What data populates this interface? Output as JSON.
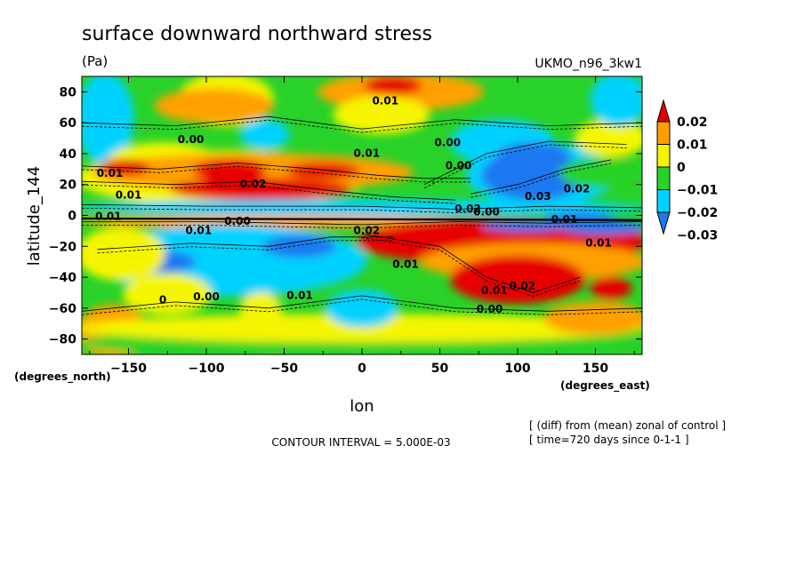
{
  "chart_data": {
    "type": "heatmap",
    "title": "surface downward northward stress",
    "units": "(Pa)",
    "run_label": "UKMO_n96_3kw1",
    "xlabel": "lon",
    "ylabel": "latitude_144",
    "x_unit_note": "(degrees_east)",
    "y_unit_note": "(degrees_north)",
    "xlim": [
      -180,
      180
    ],
    "ylim": [
      -90,
      90
    ],
    "x_ticks": [
      -150,
      -100,
      -50,
      0,
      50,
      100,
      150
    ],
    "x_tick_labels": [
      "−150",
      "−100",
      "−50",
      "0",
      "50",
      "100",
      "150"
    ],
    "y_ticks": [
      80,
      60,
      40,
      20,
      0,
      -20,
      -40,
      -60,
      -80
    ],
    "y_tick_labels": [
      "80",
      "60",
      "40",
      "20",
      "0",
      "−20",
      "−40",
      "−60",
      "−80"
    ],
    "colorbar": {
      "levels": [
        -0.03,
        -0.02,
        -0.01,
        0,
        0.01,
        0.02
      ],
      "labels": [
        "−0.03",
        "−0.02",
        "−0.01",
        "0",
        "0.01",
        "0.02"
      ],
      "colors": [
        "#1e78f0",
        "#00d2ff",
        "#28d228",
        "#f5f500",
        "#ffa000",
        "#e60000"
      ],
      "extend": "both"
    },
    "contour_interval": "CONTOUR INTERVAL = 5.000E-03",
    "contour_labels": [
      {
        "text": "0.01",
        "lon": 15,
        "lat": 72
      },
      {
        "text": "0.00",
        "lon": -110,
        "lat": 47
      },
      {
        "text": "0.00",
        "lon": 55,
        "lat": 45
      },
      {
        "text": "0.01",
        "lon": 3,
        "lat": 38
      },
      {
        "text": "0.00",
        "lon": 62,
        "lat": 30
      },
      {
        "text": "0.01",
        "lon": -162,
        "lat": 25
      },
      {
        "text": "0.02",
        "lon": -70,
        "lat": 18
      },
      {
        "text": "0.01",
        "lon": -150,
        "lat": 11
      },
      {
        "text": "0.02",
        "lon": 138,
        "lat": 15
      },
      {
        "text": "0.03",
        "lon": 113,
        "lat": 10
      },
      {
        "text": "0.02",
        "lon": 68,
        "lat": 2
      },
      {
        "text": "0.00",
        "lon": 80,
        "lat": 0
      },
      {
        "text": "0.01",
        "lon": -163,
        "lat": -3
      },
      {
        "text": "0.00",
        "lon": -80,
        "lat": -6
      },
      {
        "text": "0.01",
        "lon": -105,
        "lat": -12
      },
      {
        "text": "0.02",
        "lon": 3,
        "lat": -12
      },
      {
        "text": "0.01",
        "lon": 130,
        "lat": -5
      },
      {
        "text": "0.01",
        "lon": 152,
        "lat": -20
      },
      {
        "text": "0.01",
        "lon": 28,
        "lat": -34
      },
      {
        "text": "0.01",
        "lon": -40,
        "lat": -54
      },
      {
        "text": "0.02",
        "lon": 103,
        "lat": -48
      },
      {
        "text": "0.01",
        "lon": 85,
        "lat": -51
      },
      {
        "text": "0.00",
        "lon": -100,
        "lat": -55
      },
      {
        "text": "0.00",
        "lon": 82,
        "lat": -63
      },
      {
        "text": "0",
        "lon": -128,
        "lat": -57
      }
    ],
    "footer_lines": [
      "[ (diff) from (mean) zonal of control ]",
      "[ time=720 days since 0-1-1 ]"
    ]
  }
}
